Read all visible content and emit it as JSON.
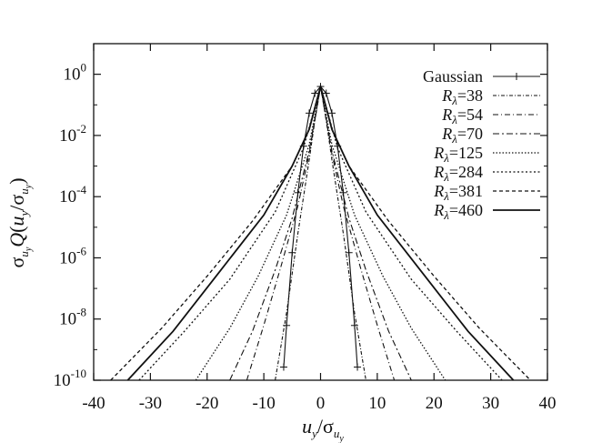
{
  "chart_data": {
    "type": "line",
    "title": "",
    "xlabel": "u_y/σ_{u_y}",
    "ylabel": "σ_{u_y} Q(u_y/σ_{u_y})",
    "xlim": [
      -40,
      40
    ],
    "ylim_log10": [
      -10,
      1
    ],
    "yscale": "log",
    "grid": false,
    "legend_position": "top-right",
    "x_ticks": [
      -40,
      -30,
      -20,
      -10,
      0,
      10,
      20,
      30,
      40
    ],
    "y_ticks": [
      {
        "exp": 0,
        "base": "10",
        "sup": "0"
      },
      {
        "exp": -2,
        "base": "10",
        "sup": "-2"
      },
      {
        "exp": -4,
        "base": "10",
        "sup": "-4"
      },
      {
        "exp": -6,
        "base": "10",
        "sup": "-6"
      },
      {
        "exp": -8,
        "base": "10",
        "sup": "-8"
      },
      {
        "exp": -10,
        "base": "10",
        "sup": "-10"
      }
    ],
    "series": [
      {
        "name": "Gaussian",
        "style": "gaussian",
        "x": [
          -6.5,
          -6,
          -5,
          -4,
          -3,
          -2,
          -1,
          0,
          1,
          2,
          3,
          4,
          5,
          6,
          6.5
        ],
        "log10y": [
          -9.57,
          -8.21,
          -5.83,
          -3.87,
          -2.35,
          -1.27,
          -0.62,
          -0.4,
          -0.62,
          -1.27,
          -2.35,
          -3.87,
          -5.83,
          -8.21,
          -9.57
        ]
      },
      {
        "name": "R_λ=38",
        "style": "dash-fine",
        "x": [
          -8,
          -6,
          -4,
          -2,
          -1,
          0,
          1,
          2,
          4,
          6,
          8
        ],
        "log10y": [
          -10,
          -7.8,
          -5.2,
          -2.8,
          -1.5,
          -0.4,
          -1.5,
          -2.8,
          -5.2,
          -7.8,
          -10
        ]
      },
      {
        "name": "R_λ=54",
        "style": "dash-dot",
        "x": [
          -13,
          -10,
          -7,
          -4,
          -2,
          0,
          2,
          4,
          7,
          10,
          13
        ],
        "log10y": [
          -10,
          -8.2,
          -6.3,
          -4.3,
          -2.6,
          -0.4,
          -2.6,
          -4.3,
          -6.3,
          -8.2,
          -10
        ]
      },
      {
        "name": "R_λ=70",
        "style": "dash-dot-2",
        "x": [
          -16,
          -12,
          -8,
          -5,
          -2,
          0,
          2,
          5,
          8,
          12,
          16
        ],
        "log10y": [
          -10,
          -8.4,
          -6.4,
          -4.7,
          -2.5,
          -0.4,
          -2.5,
          -4.7,
          -6.4,
          -8.4,
          -10
        ]
      },
      {
        "name": "R_λ=125",
        "style": "dotted",
        "x": [
          -22,
          -16,
          -11,
          -6,
          -2,
          0,
          2,
          6,
          11,
          16,
          22
        ],
        "log10y": [
          -10,
          -8.3,
          -6.6,
          -4.6,
          -2.3,
          -0.4,
          -2.3,
          -4.6,
          -6.6,
          -8.3,
          -10
        ]
      },
      {
        "name": "R_λ=284",
        "style": "dotted-fine",
        "x": [
          -32,
          -24,
          -16,
          -8,
          -3,
          0,
          3,
          8,
          16,
          24,
          32
        ],
        "log10y": [
          -10,
          -8.4,
          -6.7,
          -4.5,
          -2.4,
          -0.4,
          -2.4,
          -4.5,
          -6.7,
          -8.4,
          -10
        ]
      },
      {
        "name": "R_λ=381",
        "style": "dashed",
        "x": [
          -37,
          -28,
          -20,
          -12,
          -5,
          -2,
          0,
          2,
          5,
          12,
          20,
          28,
          37
        ],
        "log10y": [
          -10,
          -8.3,
          -6.6,
          -4.8,
          -3.0,
          -1.8,
          -0.4,
          -1.8,
          -3.0,
          -4.8,
          -6.6,
          -8.3,
          -10
        ]
      },
      {
        "name": "R_λ=460",
        "style": "solid-thick",
        "x": [
          -34,
          -26,
          -18,
          -10,
          -5,
          -2,
          0,
          2,
          5,
          10,
          18,
          26,
          34
        ],
        "log10y": [
          -10,
          -8.4,
          -6.5,
          -4.6,
          -3.0,
          -1.8,
          -0.4,
          -1.8,
          -3.0,
          -4.6,
          -6.5,
          -8.4,
          -10
        ]
      }
    ]
  }
}
